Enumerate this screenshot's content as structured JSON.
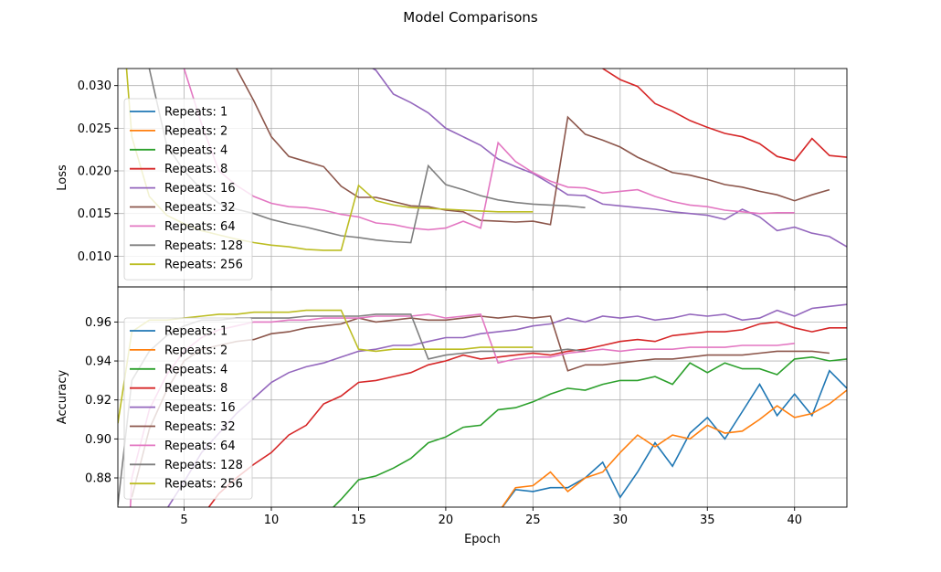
{
  "figure": {
    "title": "Model Comparisons"
  },
  "chart_data": [
    {
      "type": "line",
      "title": "",
      "xlabel": "",
      "ylabel": "Loss",
      "xlim": [
        1.2,
        43.0
      ],
      "ylim": [
        0.0064,
        0.032
      ],
      "xticks": [
        5,
        10,
        15,
        20,
        25,
        30,
        35,
        40
      ],
      "yticks": [
        0.01,
        0.015,
        0.02,
        0.025,
        0.03
      ],
      "ytick_labels": [
        "0.010",
        "0.015",
        "0.020",
        "0.025",
        "0.030"
      ],
      "grid": true,
      "legend_position": "left",
      "series": [
        {
          "name": "Repeats: 1",
          "color": "#1f77b4",
          "x": [],
          "y": []
        },
        {
          "name": "Repeats: 2",
          "color": "#ff7f0e",
          "x": [],
          "y": []
        },
        {
          "name": "Repeats: 4",
          "color": "#2ca02c",
          "x": [],
          "y": []
        },
        {
          "name": "Repeats: 8",
          "color": "#d62728",
          "x": [
            29,
            30,
            31,
            32,
            33,
            34,
            35,
            36,
            37,
            38,
            39,
            40,
            41,
            42,
            43
          ],
          "y": [
            0.032,
            0.0307,
            0.0299,
            0.0279,
            0.027,
            0.0259,
            0.0251,
            0.0244,
            0.024,
            0.0232,
            0.0217,
            0.0212,
            0.0238,
            0.0218,
            0.0216
          ]
        },
        {
          "name": "Repeats: 16",
          "color": "#9467bd",
          "x": [
            15,
            16,
            17,
            18,
            19,
            20,
            21,
            22,
            23,
            24,
            25,
            26,
            27,
            28,
            29,
            30,
            31,
            32,
            33,
            34,
            35,
            36,
            37,
            38,
            39,
            40,
            41,
            42,
            43
          ],
          "y": [
            0.033,
            0.0318,
            0.029,
            0.028,
            0.0268,
            0.025,
            0.024,
            0.023,
            0.0214,
            0.0205,
            0.0197,
            0.0185,
            0.0172,
            0.0171,
            0.0161,
            0.0159,
            0.0157,
            0.0155,
            0.0152,
            0.015,
            0.0148,
            0.0143,
            0.0155,
            0.0146,
            0.013,
            0.0134,
            0.0127,
            0.0123,
            0.0111
          ]
        },
        {
          "name": "Repeats: 32",
          "color": "#8c564b",
          "x": [
            8,
            9,
            10,
            11,
            12,
            13,
            14,
            15,
            16,
            17,
            18,
            19,
            20,
            21,
            22,
            23,
            24,
            25,
            26,
            27,
            28,
            29,
            30,
            31,
            32,
            33,
            34,
            35,
            36,
            37,
            38,
            39,
            40,
            41,
            42
          ],
          "y": [
            0.032,
            0.0282,
            0.024,
            0.0217,
            0.0211,
            0.0205,
            0.0182,
            0.0169,
            0.0169,
            0.0164,
            0.0159,
            0.0158,
            0.0154,
            0.0152,
            0.0142,
            0.0141,
            0.014,
            0.0141,
            0.0137,
            0.0263,
            0.0243,
            0.0236,
            0.0228,
            0.0216,
            0.0207,
            0.0198,
            0.0195,
            0.019,
            0.0184,
            0.0181,
            0.0176,
            0.0172,
            0.0165,
            0.0172,
            0.0178
          ]
        },
        {
          "name": "Repeats: 64",
          "color": "#e377c2",
          "x": [
            5,
            6,
            7,
            8,
            9,
            10,
            11,
            12,
            13,
            14,
            15,
            16,
            17,
            18,
            19,
            20,
            21,
            22,
            23,
            24,
            25,
            26,
            27,
            28,
            29,
            30,
            31,
            32,
            33,
            34,
            35,
            36,
            37,
            38,
            39,
            40
          ],
          "y": [
            0.032,
            0.0255,
            0.02,
            0.0183,
            0.017,
            0.0162,
            0.0158,
            0.0157,
            0.0154,
            0.0149,
            0.0146,
            0.0139,
            0.0137,
            0.0133,
            0.0131,
            0.0133,
            0.0141,
            0.0133,
            0.0233,
            0.0211,
            0.0198,
            0.0188,
            0.0181,
            0.018,
            0.0174,
            0.0176,
            0.0178,
            0.017,
            0.0164,
            0.016,
            0.0158,
            0.0154,
            0.0152,
            0.015,
            0.0151,
            0.0151
          ]
        },
        {
          "name": "Repeats: 128",
          "color": "#7f7f7f",
          "x": [
            3,
            4,
            5,
            6,
            7,
            8,
            9,
            10,
            11,
            12,
            13,
            14,
            15,
            16,
            17,
            18,
            19,
            20,
            21,
            22,
            23,
            24,
            25,
            26,
            27,
            28
          ],
          "y": [
            0.032,
            0.023,
            0.02,
            0.0178,
            0.0162,
            0.0155,
            0.015,
            0.0143,
            0.0138,
            0.0134,
            0.0129,
            0.0124,
            0.0122,
            0.0119,
            0.0117,
            0.0116,
            0.0206,
            0.0184,
            0.0178,
            0.0171,
            0.0166,
            0.0163,
            0.0161,
            0.016,
            0.0159,
            0.0157
          ]
        },
        {
          "name": "Repeats: 256",
          "color": "#bcbd22",
          "x": [
            1.7,
            2,
            3,
            4,
            5,
            6,
            7,
            8,
            9,
            10,
            11,
            12,
            13,
            14,
            15,
            16,
            17,
            18,
            19,
            20,
            21,
            22,
            23,
            24,
            25
          ],
          "y": [
            0.032,
            0.024,
            0.017,
            0.0148,
            0.0138,
            0.013,
            0.0125,
            0.012,
            0.0116,
            0.0113,
            0.0111,
            0.0108,
            0.0107,
            0.0107,
            0.0183,
            0.0165,
            0.016,
            0.0157,
            0.0156,
            0.0155,
            0.0154,
            0.0153,
            0.0152,
            0.0152,
            0.0152
          ]
        }
      ]
    },
    {
      "type": "line",
      "title": "",
      "xlabel": "Epoch",
      "ylabel": "Accuracy",
      "xlim": [
        1.2,
        43.0
      ],
      "ylim": [
        0.865,
        0.978
      ],
      "xticks": [
        5,
        10,
        15,
        20,
        25,
        30,
        35,
        40
      ],
      "yticks": [
        0.88,
        0.9,
        0.92,
        0.94,
        0.96
      ],
      "ytick_labels": [
        "0.88",
        "0.90",
        "0.92",
        "0.94",
        "0.96"
      ],
      "grid": true,
      "legend_position": "left",
      "series": [
        {
          "name": "Repeats: 1",
          "color": "#1f77b4",
          "x": [
            23,
            24,
            25,
            26,
            27,
            28,
            29,
            30,
            31,
            32,
            33,
            34,
            35,
            36,
            37,
            38,
            39,
            40,
            41,
            42,
            43
          ],
          "y": [
            0.862,
            0.874,
            0.873,
            0.875,
            0.875,
            0.88,
            0.888,
            0.87,
            0.883,
            0.898,
            0.886,
            0.903,
            0.911,
            0.9,
            0.914,
            0.928,
            0.912,
            0.923,
            0.912,
            0.935,
            0.926
          ]
        },
        {
          "name": "Repeats: 2",
          "color": "#ff7f0e",
          "x": [
            23,
            24,
            25,
            26,
            27,
            28,
            29,
            30,
            31,
            32,
            33,
            34,
            35,
            36,
            37,
            38,
            39,
            40,
            41,
            42,
            43
          ],
          "y": [
            0.862,
            0.875,
            0.876,
            0.883,
            0.873,
            0.88,
            0.883,
            0.893,
            0.902,
            0.896,
            0.902,
            0.9,
            0.907,
            0.903,
            0.904,
            0.91,
            0.917,
            0.911,
            0.913,
            0.918,
            0.925
          ]
        },
        {
          "name": "Repeats: 4",
          "color": "#2ca02c",
          "x": [
            13,
            14,
            15,
            16,
            17,
            18,
            19,
            20,
            21,
            22,
            23,
            24,
            25,
            26,
            27,
            28,
            29,
            30,
            31,
            32,
            33,
            34,
            35,
            36,
            37,
            38,
            39,
            40,
            41,
            42,
            43
          ],
          "y": [
            0.86,
            0.869,
            0.879,
            0.881,
            0.885,
            0.89,
            0.898,
            0.901,
            0.906,
            0.907,
            0.915,
            0.916,
            0.919,
            0.923,
            0.926,
            0.925,
            0.928,
            0.93,
            0.93,
            0.932,
            0.928,
            0.939,
            0.934,
            0.939,
            0.936,
            0.936,
            0.933,
            0.941,
            0.942,
            0.94,
            0.941
          ]
        },
        {
          "name": "Repeats: 8",
          "color": "#d62728",
          "x": [
            6,
            7,
            8,
            9,
            10,
            11,
            12,
            13,
            14,
            15,
            16,
            17,
            18,
            19,
            20,
            21,
            22,
            23,
            24,
            25,
            26,
            27,
            28,
            29,
            30,
            31,
            32,
            33,
            34,
            35,
            36,
            37,
            38,
            39,
            40,
            41,
            42,
            43
          ],
          "y": [
            0.86,
            0.872,
            0.88,
            0.887,
            0.893,
            0.902,
            0.907,
            0.918,
            0.922,
            0.929,
            0.93,
            0.932,
            0.934,
            0.938,
            0.94,
            0.943,
            0.941,
            0.942,
            0.943,
            0.944,
            0.943,
            0.945,
            0.946,
            0.948,
            0.95,
            0.951,
            0.95,
            0.953,
            0.954,
            0.955,
            0.955,
            0.956,
            0.959,
            0.96,
            0.957,
            0.955,
            0.957,
            0.957
          ]
        },
        {
          "name": "Repeats: 16",
          "color": "#9467bd",
          "x": [
            4,
            5,
            6,
            7,
            8,
            9,
            10,
            11,
            12,
            13,
            14,
            15,
            16,
            17,
            18,
            19,
            20,
            21,
            22,
            23,
            24,
            25,
            26,
            27,
            28,
            29,
            30,
            31,
            32,
            33,
            34,
            35,
            36,
            37,
            38,
            39,
            40,
            41,
            42,
            43
          ],
          "y": [
            0.864,
            0.878,
            0.893,
            0.903,
            0.913,
            0.921,
            0.929,
            0.934,
            0.937,
            0.939,
            0.942,
            0.945,
            0.946,
            0.948,
            0.948,
            0.95,
            0.952,
            0.952,
            0.954,
            0.955,
            0.956,
            0.958,
            0.959,
            0.962,
            0.96,
            0.963,
            0.962,
            0.963,
            0.961,
            0.962,
            0.964,
            0.963,
            0.964,
            0.961,
            0.962,
            0.966,
            0.963,
            0.967,
            0.968,
            0.969
          ]
        },
        {
          "name": "Repeats: 32",
          "color": "#8c564b",
          "x": [
            2,
            3,
            4,
            5,
            6,
            7,
            8,
            9,
            10,
            11,
            12,
            13,
            14,
            15,
            16,
            17,
            18,
            19,
            20,
            21,
            22,
            23,
            24,
            25,
            26,
            27,
            28,
            29,
            30,
            31,
            32,
            33,
            34,
            35,
            36,
            37,
            38,
            39,
            40,
            41,
            42
          ],
          "y": [
            0.87,
            0.905,
            0.925,
            0.94,
            0.946,
            0.948,
            0.95,
            0.951,
            0.954,
            0.955,
            0.957,
            0.958,
            0.959,
            0.962,
            0.96,
            0.961,
            0.962,
            0.961,
            0.961,
            0.962,
            0.963,
            0.962,
            0.963,
            0.962,
            0.963,
            0.935,
            0.938,
            0.938,
            0.939,
            0.94,
            0.941,
            0.941,
            0.942,
            0.943,
            0.943,
            0.943,
            0.944,
            0.945,
            0.945,
            0.945,
            0.944
          ]
        },
        {
          "name": "Repeats: 64",
          "color": "#e377c2",
          "x": [
            1.9,
            2,
            3,
            4,
            5,
            6,
            7,
            8,
            9,
            10,
            11,
            12,
            13,
            14,
            15,
            16,
            17,
            18,
            19,
            20,
            21,
            22,
            23,
            24,
            25,
            26,
            27,
            28,
            29,
            30,
            31,
            32,
            33,
            34,
            35,
            36,
            37,
            38,
            39,
            40
          ],
          "y": [
            0.862,
            0.88,
            0.915,
            0.933,
            0.945,
            0.952,
            0.956,
            0.958,
            0.96,
            0.96,
            0.961,
            0.961,
            0.962,
            0.962,
            0.962,
            0.963,
            0.963,
            0.963,
            0.964,
            0.962,
            0.963,
            0.964,
            0.939,
            0.941,
            0.942,
            0.942,
            0.944,
            0.945,
            0.946,
            0.945,
            0.946,
            0.946,
            0.946,
            0.947,
            0.947,
            0.947,
            0.948,
            0.948,
            0.948,
            0.949
          ]
        },
        {
          "name": "Repeats: 128",
          "color": "#7f7f7f",
          "x": [
            1.2,
            2,
            3,
            4,
            5,
            6,
            7,
            8,
            9,
            10,
            11,
            12,
            13,
            14,
            15,
            16,
            17,
            18,
            19,
            20,
            21,
            22,
            23,
            24,
            25,
            26,
            27,
            28
          ],
          "y": [
            0.866,
            0.93,
            0.945,
            0.953,
            0.958,
            0.961,
            0.961,
            0.962,
            0.962,
            0.962,
            0.962,
            0.963,
            0.963,
            0.963,
            0.963,
            0.964,
            0.964,
            0.964,
            0.941,
            0.943,
            0.944,
            0.945,
            0.945,
            0.945,
            0.945,
            0.945,
            0.946,
            0.945
          ]
        },
        {
          "name": "Repeats: 256",
          "color": "#bcbd22",
          "x": [
            1.2,
            2,
            3,
            4,
            5,
            6,
            7,
            8,
            9,
            10,
            11,
            12,
            13,
            14,
            15,
            16,
            17,
            18,
            19,
            20,
            21,
            22,
            23,
            24,
            25
          ],
          "y": [
            0.908,
            0.955,
            0.961,
            0.961,
            0.962,
            0.963,
            0.964,
            0.964,
            0.965,
            0.965,
            0.965,
            0.966,
            0.966,
            0.966,
            0.946,
            0.945,
            0.946,
            0.946,
            0.946,
            0.946,
            0.946,
            0.947,
            0.947,
            0.947,
            0.947
          ]
        }
      ]
    }
  ]
}
